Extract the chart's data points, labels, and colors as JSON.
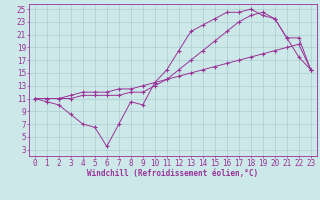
{
  "bg_color": "#cce8e8",
  "grid_color": "#aacfcf",
  "line_color": "#993399",
  "xlabel": "Windchill (Refroidissement éolien,°C)",
  "xlim_min": -0.5,
  "xlim_max": 23.5,
  "ylim_min": 2.0,
  "ylim_max": 25.8,
  "xticks": [
    0,
    1,
    2,
    3,
    4,
    5,
    6,
    7,
    8,
    9,
    10,
    11,
    12,
    13,
    14,
    15,
    16,
    17,
    18,
    19,
    20,
    21,
    22,
    23
  ],
  "yticks": [
    3,
    5,
    7,
    9,
    11,
    13,
    15,
    17,
    19,
    21,
    23,
    25
  ],
  "line1_x": [
    0,
    1,
    2,
    3,
    4,
    5,
    6,
    7,
    8,
    9,
    10,
    11,
    12,
    13,
    14,
    15,
    16,
    17,
    18,
    19,
    20,
    21,
    22,
    23
  ],
  "line1_y": [
    11,
    10.5,
    10.0,
    8.5,
    7.0,
    6.5,
    3.5,
    7.0,
    10.5,
    10.0,
    13.5,
    15.5,
    18.5,
    21.5,
    22.5,
    23.5,
    24.5,
    24.5,
    25.0,
    24.0,
    23.5,
    20.5,
    17.5,
    15.5
  ],
  "line2_x": [
    0,
    1,
    2,
    3,
    4,
    5,
    6,
    7,
    8,
    9,
    10,
    11,
    12,
    13,
    14,
    15,
    16,
    17,
    18,
    19,
    20,
    21,
    22,
    23
  ],
  "line2_y": [
    11,
    11,
    11,
    11.5,
    12,
    12,
    12,
    12.5,
    12.5,
    13,
    13.5,
    14,
    14.5,
    15,
    15.5,
    16,
    16.5,
    17,
    17.5,
    18,
    18.5,
    19,
    19.5,
    15.5
  ],
  "line3_x": [
    0,
    1,
    2,
    3,
    4,
    5,
    6,
    7,
    8,
    9,
    10,
    11,
    12,
    13,
    14,
    15,
    16,
    17,
    18,
    19,
    20,
    21,
    22,
    23
  ],
  "line3_y": [
    11,
    11,
    11,
    11,
    11.5,
    11.5,
    11.5,
    11.5,
    12,
    12,
    13,
    14,
    15.5,
    17,
    18.5,
    20,
    21.5,
    23,
    24,
    24.5,
    23.5,
    20.5,
    20.5,
    15.5
  ],
  "xlabel_fontsize": 5.5,
  "tick_fontsize": 5.5,
  "marker_size": 3.0,
  "line_width": 0.7
}
